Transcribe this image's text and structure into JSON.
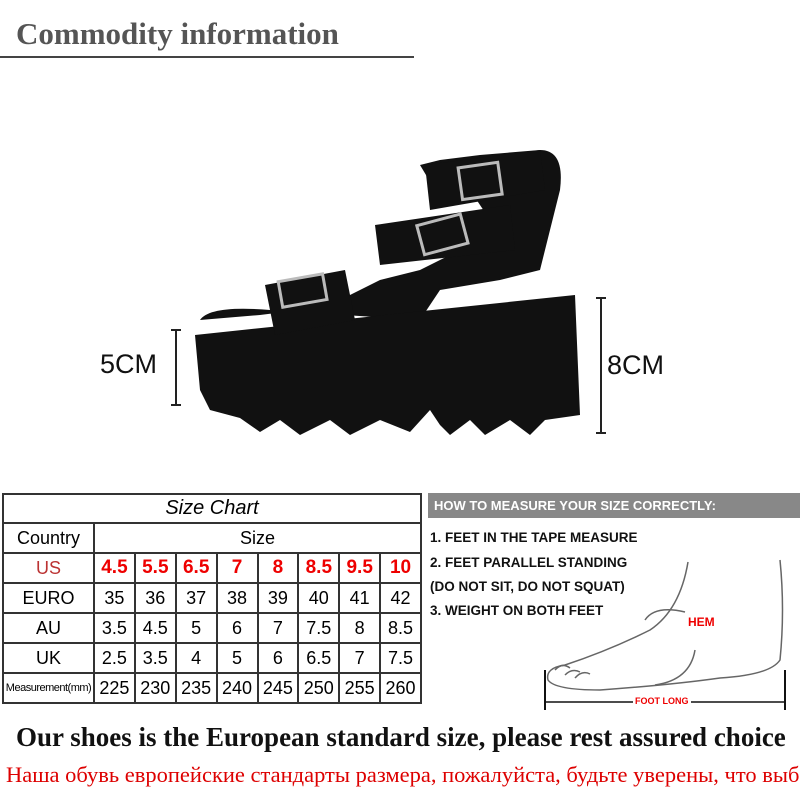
{
  "title": "Commodity information",
  "dimensions": {
    "front_height": "5CM",
    "heel_height": "8CM"
  },
  "size_chart": {
    "title": "Size Chart",
    "country_header": "Country",
    "size_header": "Size",
    "rows": [
      {
        "label": "US",
        "values": [
          "4.5",
          "5.5",
          "6.5",
          "7",
          "8",
          "8.5",
          "9.5",
          "10"
        ]
      },
      {
        "label": "EURO",
        "values": [
          "35",
          "36",
          "37",
          "38",
          "39",
          "40",
          "41",
          "42"
        ]
      },
      {
        "label": "AU",
        "values": [
          "3.5",
          "4.5",
          "5",
          "6",
          "7",
          "7.5",
          "8",
          "8.5"
        ]
      },
      {
        "label": "UK",
        "values": [
          "2.5",
          "3.5",
          "4",
          "5",
          "6",
          "6.5",
          "7",
          "7.5"
        ]
      },
      {
        "label": "Measurement(mm)",
        "values": [
          "225",
          "230",
          "235",
          "240",
          "245",
          "250",
          "255",
          "260"
        ]
      }
    ]
  },
  "measure": {
    "header": "HOW TO MEASURE YOUR SIZE CORRECTLY:",
    "steps": [
      "1. FEET IN THE TAPE MEASURE",
      "2. FEET PARALLEL STANDING",
      "(DO NOT SIT, DO NOT SQUAT)",
      "3. WEIGHT ON BOTH FEET"
    ],
    "hem_label": "HEM",
    "foot_long_label": "FOOT LONG"
  },
  "footer": {
    "english": "Our shoes is the European standard size, please rest assured choice",
    "russian": "Наша обувь европейские стандарты размера, пожалуйста, будьте уверены, что выбор"
  },
  "colors": {
    "accent_red": "#e00000",
    "header_gray": "#888888"
  }
}
